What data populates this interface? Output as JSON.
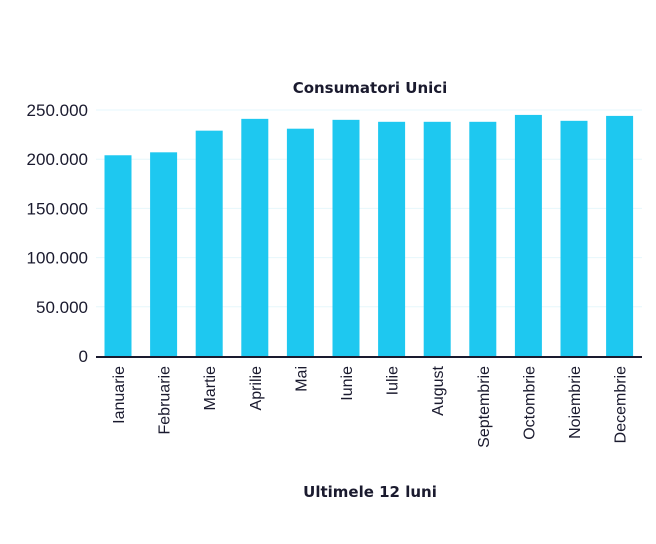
{
  "chart_data": {
    "type": "bar",
    "title": "Consumatori Unici",
    "xlabel": "Ultimele 12 luni",
    "ylabel": "",
    "categories": [
      "Ianuarie",
      "Februarie",
      "Martie",
      "Aprilie",
      "Mai",
      "Iunie",
      "Iulie",
      "August",
      "Septembrie",
      "Octombrie",
      "Noiembrie",
      "Decembrie"
    ],
    "values": [
      204000,
      207000,
      229000,
      241000,
      231000,
      240000,
      238000,
      238000,
      238000,
      245000,
      239000,
      244000
    ],
    "ylim": [
      0,
      250000
    ],
    "yticks": [
      0,
      50000,
      100000,
      150000,
      200000,
      250000
    ],
    "ytick_labels": [
      "0",
      "50.000",
      "100.000",
      "150.000",
      "200.000",
      "250.000"
    ],
    "grid": true,
    "bar_color": "#1ec8f0",
    "axis_color": "#1a1a2e",
    "grid_color": "#e6f7fc"
  }
}
